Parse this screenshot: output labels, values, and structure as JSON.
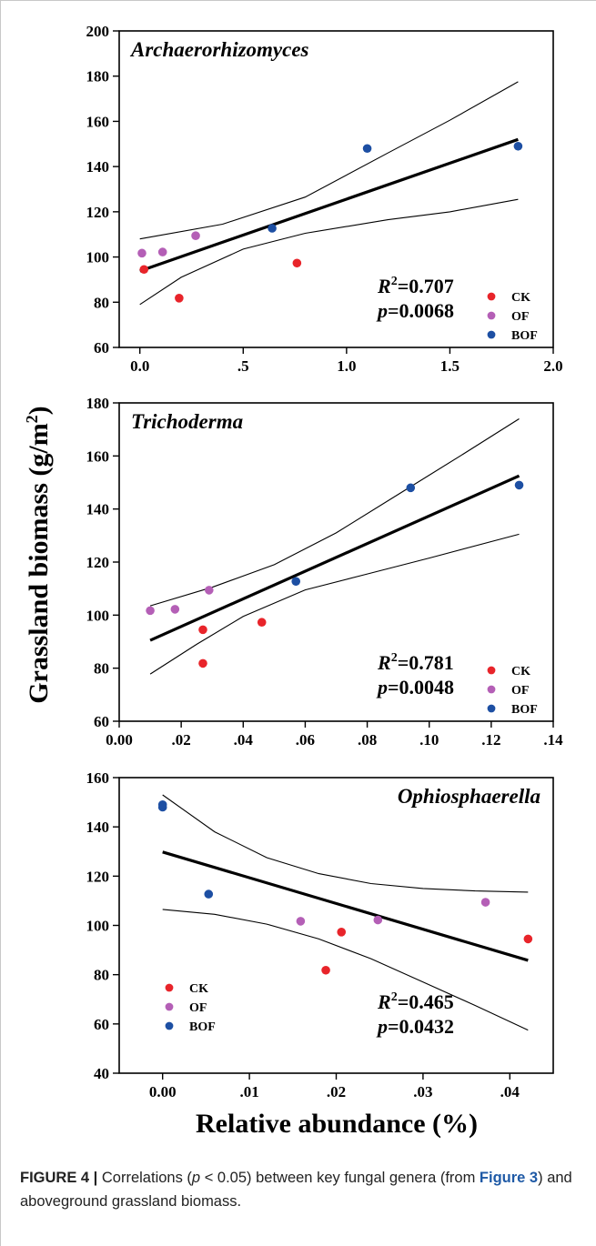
{
  "figure": {
    "ylabel_main": "Grassland biomass",
    "ylabel_unit_open": "(g/m",
    "ylabel_unit_sup": "2",
    "ylabel_unit_close": ")",
    "xlabel": "Relative abundance (%)"
  },
  "legend_labels": [
    "CK",
    "OF",
    "BOF"
  ],
  "colors": {
    "CK": "#e8242a",
    "OF": "#b45fb6",
    "BOF": "#1d4fa3",
    "line": "#000000"
  },
  "chart_data": [
    {
      "type": "scatter",
      "title": "Archaerorhizomyces",
      "r2_label": "R",
      "r2_sup": "2",
      "r2_value": "=0.707",
      "p_label": "p",
      "p_value": "=0.0068",
      "xlim": [
        -0.1,
        2.0
      ],
      "ylim": [
        60,
        200
      ],
      "xticks": [
        0.0,
        0.5,
        1.0,
        1.5,
        2.0
      ],
      "xtick_labels": [
        "0.0",
        ".5",
        "1.0",
        "1.5",
        "2.0"
      ],
      "yticks": [
        60,
        80,
        100,
        120,
        140,
        160,
        180,
        200
      ],
      "legend_position": "bottom-right",
      "series": [
        {
          "name": "CK",
          "x": [
            0.02,
            0.19,
            0.76
          ],
          "y": [
            94.5,
            81.8,
            97.3
          ]
        },
        {
          "name": "OF",
          "x": [
            0.01,
            0.11,
            0.27
          ],
          "y": [
            101.7,
            102.2,
            109.4
          ]
        },
        {
          "name": "BOF",
          "x": [
            0.64,
            1.1,
            1.83
          ],
          "y": [
            112.7,
            148.0,
            149.0
          ]
        }
      ],
      "fit": {
        "x": [
          0.0,
          1.83
        ],
        "y": [
          93.8,
          152.0
        ]
      },
      "ci_upper": {
        "x": [
          0.0,
          0.4,
          0.8,
          1.2,
          1.5,
          1.83
        ],
        "y": [
          108.0,
          114.5,
          126.5,
          146.0,
          160.5,
          177.5
        ]
      },
      "ci_lower": {
        "x": [
          0.0,
          0.2,
          0.5,
          0.8,
          1.2,
          1.5,
          1.83
        ],
        "y": [
          79.0,
          91.0,
          103.5,
          110.5,
          116.5,
          120.0,
          125.5
        ]
      }
    },
    {
      "type": "scatter",
      "title": "Trichoderma",
      "r2_label": "R",
      "r2_sup": "2",
      "r2_value": "=0.781",
      "p_label": "p",
      "p_value": "=0.0048",
      "xlim": [
        0.0,
        0.14
      ],
      "ylim": [
        60,
        180
      ],
      "xticks": [
        0.0,
        0.02,
        0.04,
        0.06,
        0.08,
        0.1,
        0.12,
        0.14
      ],
      "xtick_labels": [
        "0.00",
        ".02",
        ".04",
        ".06",
        ".08",
        ".10",
        ".12",
        ".14"
      ],
      "yticks": [
        60,
        80,
        100,
        120,
        140,
        160,
        180
      ],
      "legend_position": "bottom-right",
      "series": [
        {
          "name": "CK",
          "x": [
            0.027,
            0.027,
            0.046
          ],
          "y": [
            94.5,
            81.8,
            97.3
          ]
        },
        {
          "name": "OF",
          "x": [
            0.01,
            0.018,
            0.029
          ],
          "y": [
            101.7,
            102.2,
            109.4
          ]
        },
        {
          "name": "BOF",
          "x": [
            0.057,
            0.094,
            0.129
          ],
          "y": [
            112.7,
            148.0,
            149.0
          ]
        }
      ],
      "fit": {
        "x": [
          0.01,
          0.129
        ],
        "y": [
          90.5,
          152.5
        ]
      },
      "ci_upper": {
        "x": [
          0.01,
          0.03,
          0.05,
          0.07,
          0.09,
          0.11,
          0.129
        ],
        "y": [
          103.5,
          110.5,
          119.0,
          131.0,
          145.5,
          160.0,
          174.0
        ]
      },
      "ci_lower": {
        "x": [
          0.01,
          0.025,
          0.04,
          0.06,
          0.08,
          0.1,
          0.129
        ],
        "y": [
          77.8,
          89.0,
          99.5,
          109.5,
          115.5,
          121.5,
          130.5
        ]
      }
    },
    {
      "type": "scatter",
      "title": "Ophiosphaerella",
      "r2_label": "R",
      "r2_sup": "2",
      "r2_value": "=0.465",
      "p_label": "p",
      "p_value": "=0.0432",
      "xlim": [
        -0.005,
        0.045
      ],
      "ylim": [
        40,
        160
      ],
      "xticks": [
        0.0,
        0.01,
        0.02,
        0.03,
        0.04
      ],
      "xtick_labels": [
        "0.00",
        ".01",
        ".02",
        ".03",
        ".04"
      ],
      "yticks": [
        40,
        60,
        80,
        100,
        120,
        140,
        160
      ],
      "legend_position": "bottom-left",
      "series": [
        {
          "name": "CK",
          "x": [
            0.0188,
            0.0206,
            0.0421
          ],
          "y": [
            81.8,
            97.3,
            94.5
          ]
        },
        {
          "name": "OF",
          "x": [
            0.0159,
            0.0248,
            0.0372
          ],
          "y": [
            101.7,
            102.2,
            109.4
          ]
        },
        {
          "name": "BOF",
          "x": [
            0.0,
            0.0,
            0.0053
          ],
          "y": [
            148.0,
            149.0,
            112.7
          ]
        }
      ],
      "fit": {
        "x": [
          0.0,
          0.0421
        ],
        "y": [
          129.8,
          85.8
        ]
      },
      "ci_upper": {
        "x": [
          0.0,
          0.006,
          0.012,
          0.018,
          0.024,
          0.03,
          0.036,
          0.0421
        ],
        "y": [
          153.0,
          138.0,
          127.5,
          121.0,
          117.0,
          115.0,
          114.0,
          113.5
        ]
      },
      "ci_lower": {
        "x": [
          0.0,
          0.006,
          0.012,
          0.018,
          0.024,
          0.03,
          0.036,
          0.0421
        ],
        "y": [
          106.5,
          104.5,
          100.5,
          94.5,
          86.5,
          77.0,
          67.5,
          57.5
        ]
      }
    }
  ],
  "caption": {
    "label": "FIGURE 4 |",
    "text_before_p": " Correlations (",
    "p": "p",
    "text_mid": " < 0.05) between key fungal genera (from ",
    "ref": "Figure 3",
    "text_after": ") and aboveground grassland biomass."
  }
}
